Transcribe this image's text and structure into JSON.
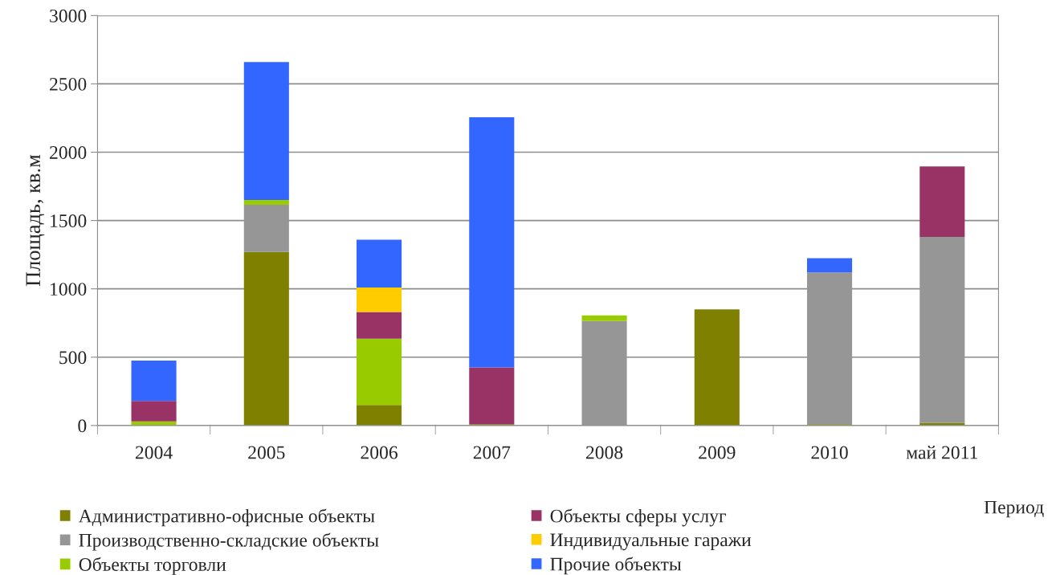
{
  "chart_data": {
    "type": "bar",
    "stacked": true,
    "xlabel": "Период",
    "ylabel": "Площадь, кв.м",
    "categories": [
      "2004",
      "2005",
      "2006",
      "2007",
      "2008",
      "2009",
      "2010",
      "май 2011"
    ],
    "series": [
      {
        "name": "Административно-офисные объекты",
        "color": "#808000",
        "values": [
          0,
          1270,
          150,
          10,
          0,
          850,
          10,
          20
        ]
      },
      {
        "name": "Производственно-складские объекты",
        "color": "#969696",
        "values": [
          0,
          345,
          0,
          0,
          765,
          0,
          1110,
          1360
        ]
      },
      {
        "name": "Объекты торговли",
        "color": "#99cc00",
        "values": [
          30,
          35,
          485,
          0,
          40,
          0,
          0,
          0
        ]
      },
      {
        "name": "Объекты сферы услуг",
        "color": "#993366",
        "values": [
          150,
          0,
          195,
          415,
          0,
          0,
          0,
          515
        ]
      },
      {
        "name": "Индивидуальные гаражи",
        "color": "#ffcc00",
        "values": [
          0,
          0,
          180,
          0,
          0,
          0,
          0,
          0
        ]
      },
      {
        "name": "Прочие объекты",
        "color": "#3366ff",
        "values": [
          295,
          1010,
          350,
          1830,
          0,
          0,
          105,
          0
        ]
      }
    ],
    "ylim": [
      0,
      3000
    ],
    "yticks": [
      0,
      500,
      1000,
      1500,
      2000,
      2500,
      3000
    ],
    "grid": "y",
    "legend": "bottom"
  }
}
